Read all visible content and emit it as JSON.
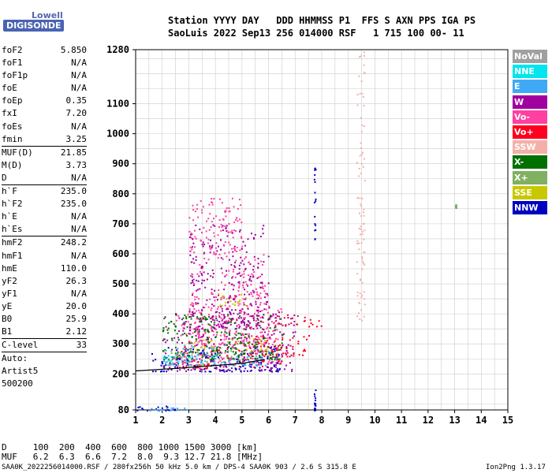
{
  "logo": {
    "brand": "Lowell",
    "name": "DIGISONDE"
  },
  "header": {
    "line1": "Station YYYY DAY   DDD HHMMSS P1  FFS S AXN PPS IGA PS",
    "line2": "SaoLuis 2022 Sep13 256 014000 RSF   1 715 100 00- 11"
  },
  "parameters": [
    {
      "label": "foF2",
      "value": "5.850"
    },
    {
      "label": "foF1",
      "value": "N/A"
    },
    {
      "label": "foF1p",
      "value": "N/A"
    },
    {
      "label": "foE",
      "value": "N/A"
    },
    {
      "label": "foEp",
      "value": "0.35"
    },
    {
      "label": "fxI",
      "value": "7.20"
    },
    {
      "label": "foEs",
      "value": "N/A"
    },
    {
      "label": "fmin",
      "value": "3.25"
    },
    {
      "label": "MUF(D)",
      "value": "21.85",
      "sep": true
    },
    {
      "label": "M(D)",
      "value": "3.73"
    },
    {
      "label": "D",
      "value": "N/A"
    },
    {
      "label": "h`F",
      "value": "235.0",
      "sep": true
    },
    {
      "label": "h`F2",
      "value": "235.0"
    },
    {
      "label": "h`E",
      "value": "N/A"
    },
    {
      "label": "h`Es",
      "value": "N/A"
    },
    {
      "label": "hmF2",
      "value": "248.2",
      "sep": true
    },
    {
      "label": "hmF1",
      "value": "N/A"
    },
    {
      "label": "hmE",
      "value": "110.0"
    },
    {
      "label": "yF2",
      "value": "26.3"
    },
    {
      "label": "yF1",
      "value": "N/A"
    },
    {
      "label": "yE",
      "value": "20.0"
    },
    {
      "label": "B0",
      "value": "25.9"
    },
    {
      "label": "B1",
      "value": "2.12"
    },
    {
      "label": "C-level",
      "value": "33",
      "sep": true
    },
    {
      "label": "Auto:",
      "value": "",
      "sep": true
    },
    {
      "label": "Artist5",
      "value": ""
    },
    {
      "label": "500200",
      "value": ""
    }
  ],
  "legend": [
    {
      "label": "NoVal",
      "color": "#a0a0a0"
    },
    {
      "label": "NNE",
      "color": "#00e5ee"
    },
    {
      "label": "E",
      "color": "#3fa9f5"
    },
    {
      "label": "W",
      "color": "#a000a0"
    },
    {
      "label": "Vo-",
      "color": "#ff40a0"
    },
    {
      "label": "Vo+",
      "color": "#ff0020"
    },
    {
      "label": "SSW",
      "color": "#f4b0a8"
    },
    {
      "label": "X-",
      "color": "#007000"
    },
    {
      "label": "X+",
      "color": "#80b060"
    },
    {
      "label": "SSE",
      "color": "#c8c800"
    },
    {
      "label": "NNW",
      "color": "#0000c0"
    }
  ],
  "footer": {
    "d_line": "D     100  200  400  600  800 1000 1500 3000 [km]",
    "muf_line": "MUF   6.2  6.3  6.6  7.2  8.0  9.3 12.7 21.8 [MHz]",
    "file_line": "SAA0K_2022256014000.RSF / 280fx256h 50 kHz 5.0 km / DPS-4 SAA0K 903 / 2.6 S 315.8 E",
    "version": "Ion2Png 1.3.17"
  },
  "chart_data": {
    "type": "scatter",
    "title": "",
    "xlabel": "",
    "ylabel": "",
    "xlim": [
      1,
      15
    ],
    "ylim": [
      80,
      1280
    ],
    "x_ticks": [
      "1",
      "2",
      "3",
      "4",
      "5",
      "6",
      "7",
      "8",
      "9",
      "10",
      "11",
      "12",
      "13",
      "14",
      "15"
    ],
    "y_ticks": [
      "80",
      "200",
      "300",
      "400",
      "500",
      "600",
      "700",
      "800",
      "900",
      "1000",
      "1100",
      "1280"
    ],
    "grid": true,
    "trace": {
      "name": "",
      "points": [
        [
          1.0,
          210
        ],
        [
          2.5,
          218
        ],
        [
          4.0,
          228
        ],
        [
          5.0,
          235
        ],
        [
          5.85,
          248
        ]
      ]
    },
    "series": [
      {
        "name": "Vo-",
        "clusters": [
          [
            2.5,
            6.5,
            240,
            420
          ],
          [
            3,
            6,
            300,
            600
          ],
          [
            3,
            5,
            600,
            790
          ]
        ]
      },
      {
        "name": "Vo+",
        "clusters": [
          [
            5.5,
            7.5,
            260,
            330
          ],
          [
            6.2,
            8,
            360,
            400
          ],
          [
            2.5,
            6.5,
            220,
            300
          ]
        ]
      },
      {
        "name": "W",
        "clusters": [
          [
            2,
            7,
            210,
            420
          ],
          [
            3,
            6,
            350,
            700
          ]
        ]
      },
      {
        "name": "NNW",
        "clusters": [
          [
            1.5,
            6.5,
            210,
            290
          ],
          [
            1,
            2.5,
            80,
            95
          ],
          [
            7.7,
            7.75,
            650,
            900
          ],
          [
            7.7,
            7.75,
            80,
            150
          ]
        ]
      },
      {
        "name": "E",
        "clusters": [
          [
            1,
            3,
            80,
            90
          ],
          [
            2,
            6,
            230,
            300
          ]
        ]
      },
      {
        "name": "SSE",
        "clusters": [
          [
            4,
            5.2,
            430,
            470
          ],
          [
            3,
            6,
            280,
            320
          ]
        ]
      },
      {
        "name": "SSW",
        "clusters": [
          [
            9.3,
            9.6,
            380,
            1280
          ]
        ]
      },
      {
        "name": "X+",
        "clusters": [
          [
            2,
            5,
            230,
            280
          ],
          [
            13,
            13.05,
            755,
            765
          ]
        ]
      },
      {
        "name": "X-",
        "clusters": [
          [
            2,
            6.5,
            250,
            400
          ]
        ]
      },
      {
        "name": "NNE",
        "clusters": [
          [
            2,
            4,
            240,
            280
          ]
        ]
      }
    ]
  }
}
